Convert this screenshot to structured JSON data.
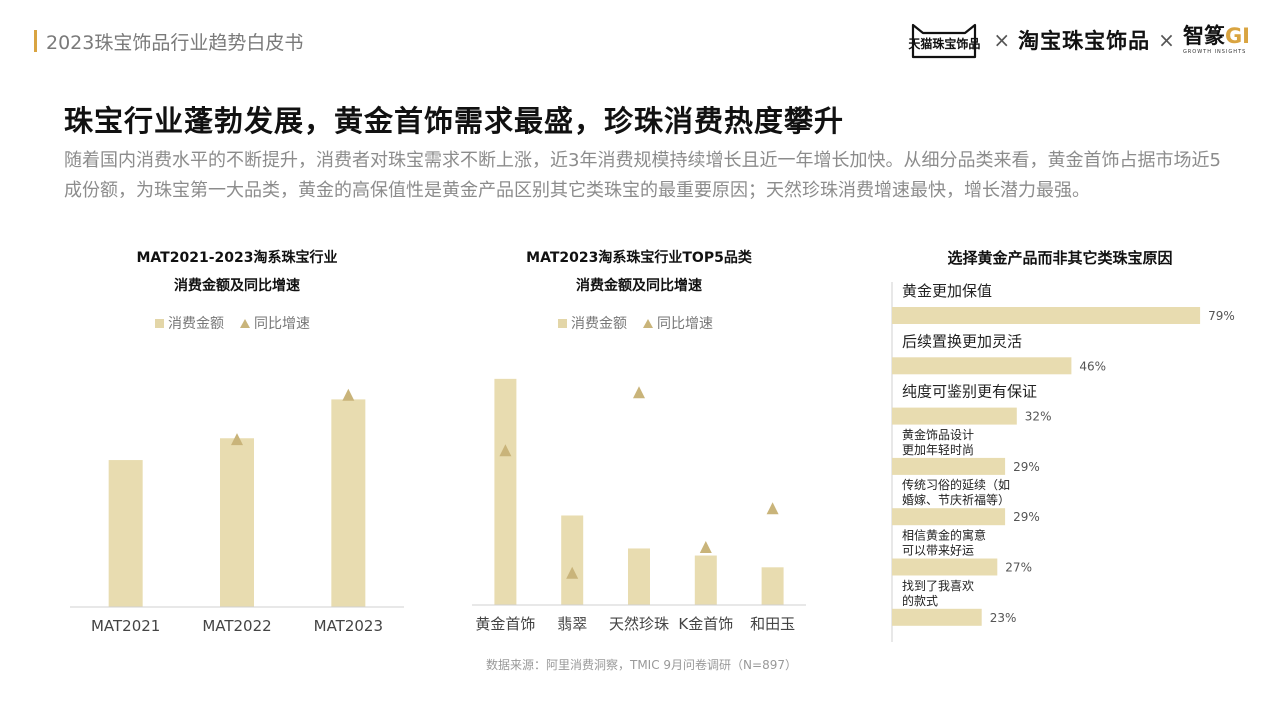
{
  "header": {
    "title": "2023珠宝饰品行业趋势白皮书",
    "brand_tmall": "天猫珠宝饰品",
    "times": "×",
    "brand_taobao": "淘宝珠宝饰品",
    "brand_zhi": "智篆",
    "brand_gi": "GI",
    "brand_sub": "GROWTH  INSIGHTS"
  },
  "headline": "珠宝行业蓬勃发展，黄金首饰需求最盛，珍珠消费热度攀升",
  "summary": "随着国内消费水平的不断提升，消费者对珠宝需求不断上涨，近3年消费规模持续增长且近一年增长加快。从细分品类来看，黄金首饰占据市场近5成份额，为珠宝第一大品类，黄金的高保值性是黄金产品区别其它类珠宝的最重要原因；天然珍珠消费增速最快，增长潜力最强。",
  "source": "数据来源：阿里消费洞察，TMIC 9月问卷调研（N=897）",
  "colors": {
    "bar": "#e8dcb0",
    "marker": "#c9b47a",
    "accent": "#d9a441",
    "axis": "#d0d0d0"
  },
  "chart_data": [
    {
      "type": "bar",
      "title_line1": "MAT2021-2023淘系珠宝行业",
      "title_line2": "消费金额及同比增速",
      "legend": [
        "消费金额",
        "同比增速"
      ],
      "categories": [
        "MAT2021",
        "MAT2022",
        "MAT2023"
      ],
      "series": [
        {
          "name": "消费金额",
          "values": [
            155,
            178,
            219
          ]
        },
        {
          "name": "同比增速",
          "values": [
            null,
            14,
            23
          ]
        }
      ],
      "ylim": [
        0,
        250
      ],
      "y2lim": [
        -20,
        28
      ]
    },
    {
      "type": "bar",
      "title_line1": "MAT2023淘系珠宝行业TOP5品类",
      "title_line2": "消费金额及同比增速",
      "legend": [
        "消费金额",
        "同比增速"
      ],
      "categories": [
        "黄金首饰",
        "翡翠",
        "天然珍珠",
        "K金首饰",
        "和田玉"
      ],
      "series": [
        {
          "name": "消费金额",
          "values": [
            48,
            19,
            12,
            10.5,
            8
          ]
        },
        {
          "name": "同比增速",
          "values": [
            20,
            1,
            29,
            5,
            11
          ]
        }
      ],
      "ylim": [
        0,
        52
      ],
      "y2lim": [
        -4,
        34
      ]
    },
    {
      "type": "bar",
      "orientation": "horizontal",
      "title": "选择黄金产品而非其它类珠宝原因",
      "categories": [
        [
          "黄金更加保值"
        ],
        [
          "后续置换更加灵活"
        ],
        [
          "纯度可鉴别更有保证"
        ],
        [
          "黄金饰品设计",
          "更加年轻时尚"
        ],
        [
          "传统习俗的延续（如",
          "婚嫁、节庆祈福等）"
        ],
        [
          "相信黄金的寓意",
          "可以带来好运"
        ],
        [
          "找到了我喜欢",
          "的款式"
        ]
      ],
      "values": [
        79,
        46,
        32,
        29,
        29,
        27,
        23
      ],
      "value_labels": [
        "79%",
        "46%",
        "32%",
        "29%",
        "29%",
        "27%",
        "23%"
      ],
      "xlim": [
        0,
        100
      ]
    }
  ]
}
